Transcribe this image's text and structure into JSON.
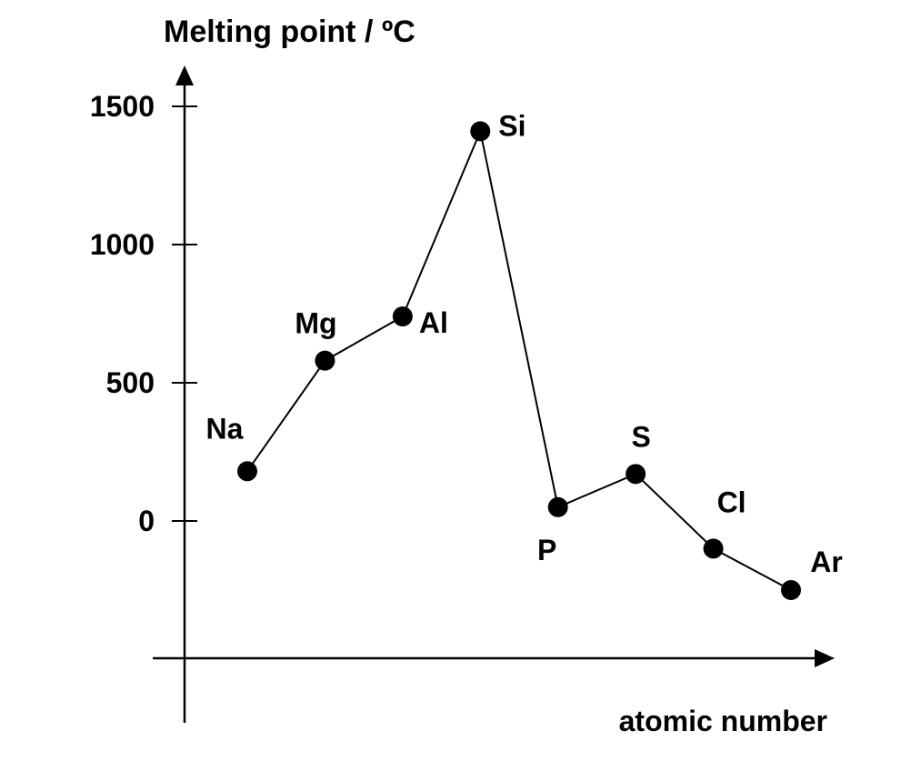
{
  "chart_data": {
    "type": "line",
    "title": "",
    "ylabel": "Melting point / ºC",
    "xlabel": "atomic number",
    "ylim": [
      -500,
      1500
    ],
    "yticks": [
      {
        "value": 0,
        "label": "0"
      },
      {
        "value": 500,
        "label": "500"
      },
      {
        "value": 1000,
        "label": "1000"
      },
      {
        "value": 1500,
        "label": "1500"
      }
    ],
    "grid": false,
    "series": [
      {
        "color": "#000000",
        "points": [
          {
            "label": "Na",
            "x": 11,
            "y": 180
          },
          {
            "label": "Mg",
            "x": 12,
            "y": 580
          },
          {
            "label": "Al",
            "x": 13,
            "y": 740
          },
          {
            "label": "Si",
            "x": 14,
            "y": 1410
          },
          {
            "label": "P",
            "x": 15,
            "y": 50
          },
          {
            "label": "S",
            "x": 16,
            "y": 170
          },
          {
            "label": "Cl",
            "x": 17,
            "y": -100
          },
          {
            "label": "Ar",
            "x": 18,
            "y": -250
          }
        ]
      }
    ]
  }
}
